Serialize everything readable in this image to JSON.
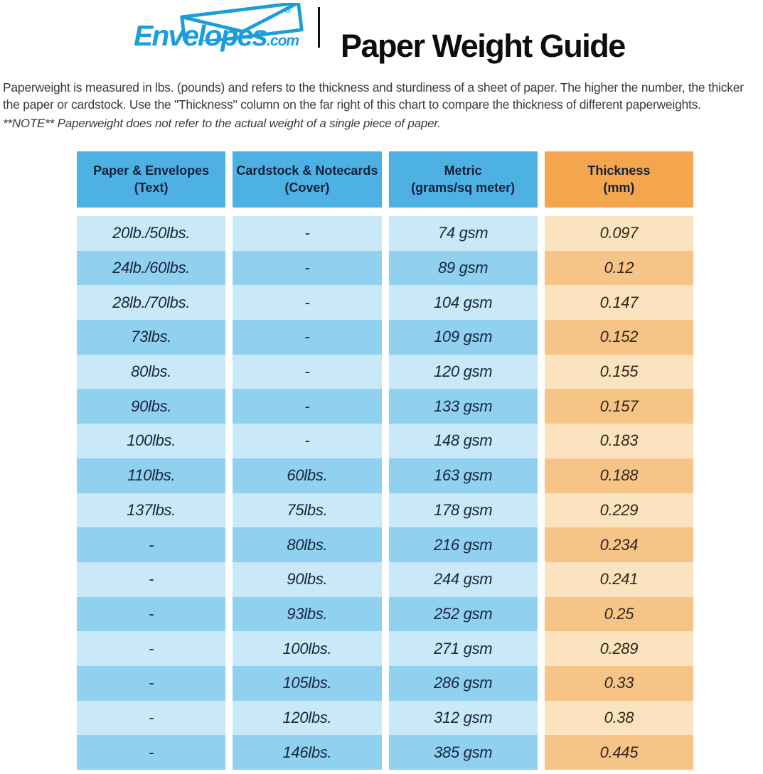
{
  "masthead": {
    "logo": {
      "brand": "Envelopes",
      "tld": ".com",
      "registered": "®"
    },
    "title": "Paper Weight Guide"
  },
  "intro": {
    "paragraph": "Paperweight is measured in lbs. (pounds) and refers to the thickness and sturdiness of a sheet of paper. The higher the number, the thicker the paper or cardstock. Use the \"Thickness\" column on the far right of this chart to compare the thickness of different paperweights.",
    "note": "**NOTE** Paperweight does not refer to the actual weight of a single piece of paper."
  },
  "chart_data": {
    "type": "table",
    "columns": [
      {
        "label": "Paper & Envelopes",
        "sublabel": "(Text)"
      },
      {
        "label": "Cardstock & Notecards",
        "sublabel": "(Cover)"
      },
      {
        "label": "Metric",
        "sublabel": "(grams/sq meter)"
      },
      {
        "label": "Thickness",
        "sublabel": "(mm)"
      }
    ],
    "rows": [
      [
        "20lb./50lbs.",
        "-",
        "74 gsm",
        "0.097"
      ],
      [
        "24lb./60lbs.",
        "-",
        "89 gsm",
        "0.12"
      ],
      [
        "28lb./70lbs.",
        "-",
        "104 gsm",
        "0.147"
      ],
      [
        "73lbs.",
        "-",
        "109 gsm",
        "0.152"
      ],
      [
        "80lbs.",
        "-",
        "120 gsm",
        "0.155"
      ],
      [
        "90lbs.",
        "-",
        "133 gsm",
        "0.157"
      ],
      [
        "100lbs.",
        "-",
        "148 gsm",
        "0.183"
      ],
      [
        "110lbs.",
        "60lbs.",
        "163 gsm",
        "0.188"
      ],
      [
        "137lbs.",
        "75lbs.",
        "178 gsm",
        "0.229"
      ],
      [
        "-",
        "80lbs.",
        "216 gsm",
        "0.234"
      ],
      [
        "-",
        "90lbs.",
        "244 gsm",
        "0.241"
      ],
      [
        "-",
        "93lbs.",
        "252 gsm",
        "0.25"
      ],
      [
        "-",
        "100lbs.",
        "271 gsm",
        "0.289"
      ],
      [
        "-",
        "105lbs.",
        "286 gsm",
        "0.33"
      ],
      [
        "-",
        "120lbs.",
        "312 gsm",
        "0.38"
      ],
      [
        "-",
        "146lbs.",
        "385 gsm",
        "0.445"
      ]
    ]
  },
  "colors": {
    "brand": "#1b9dd9",
    "header_blue": "#4db2e3",
    "header_orange": "#f4a64f",
    "row_blue_light": "#c9e8f8",
    "row_blue_dark": "#8fd1ef",
    "row_orange_light": "#fbe3bf",
    "row_orange_dark": "#f7c488"
  }
}
